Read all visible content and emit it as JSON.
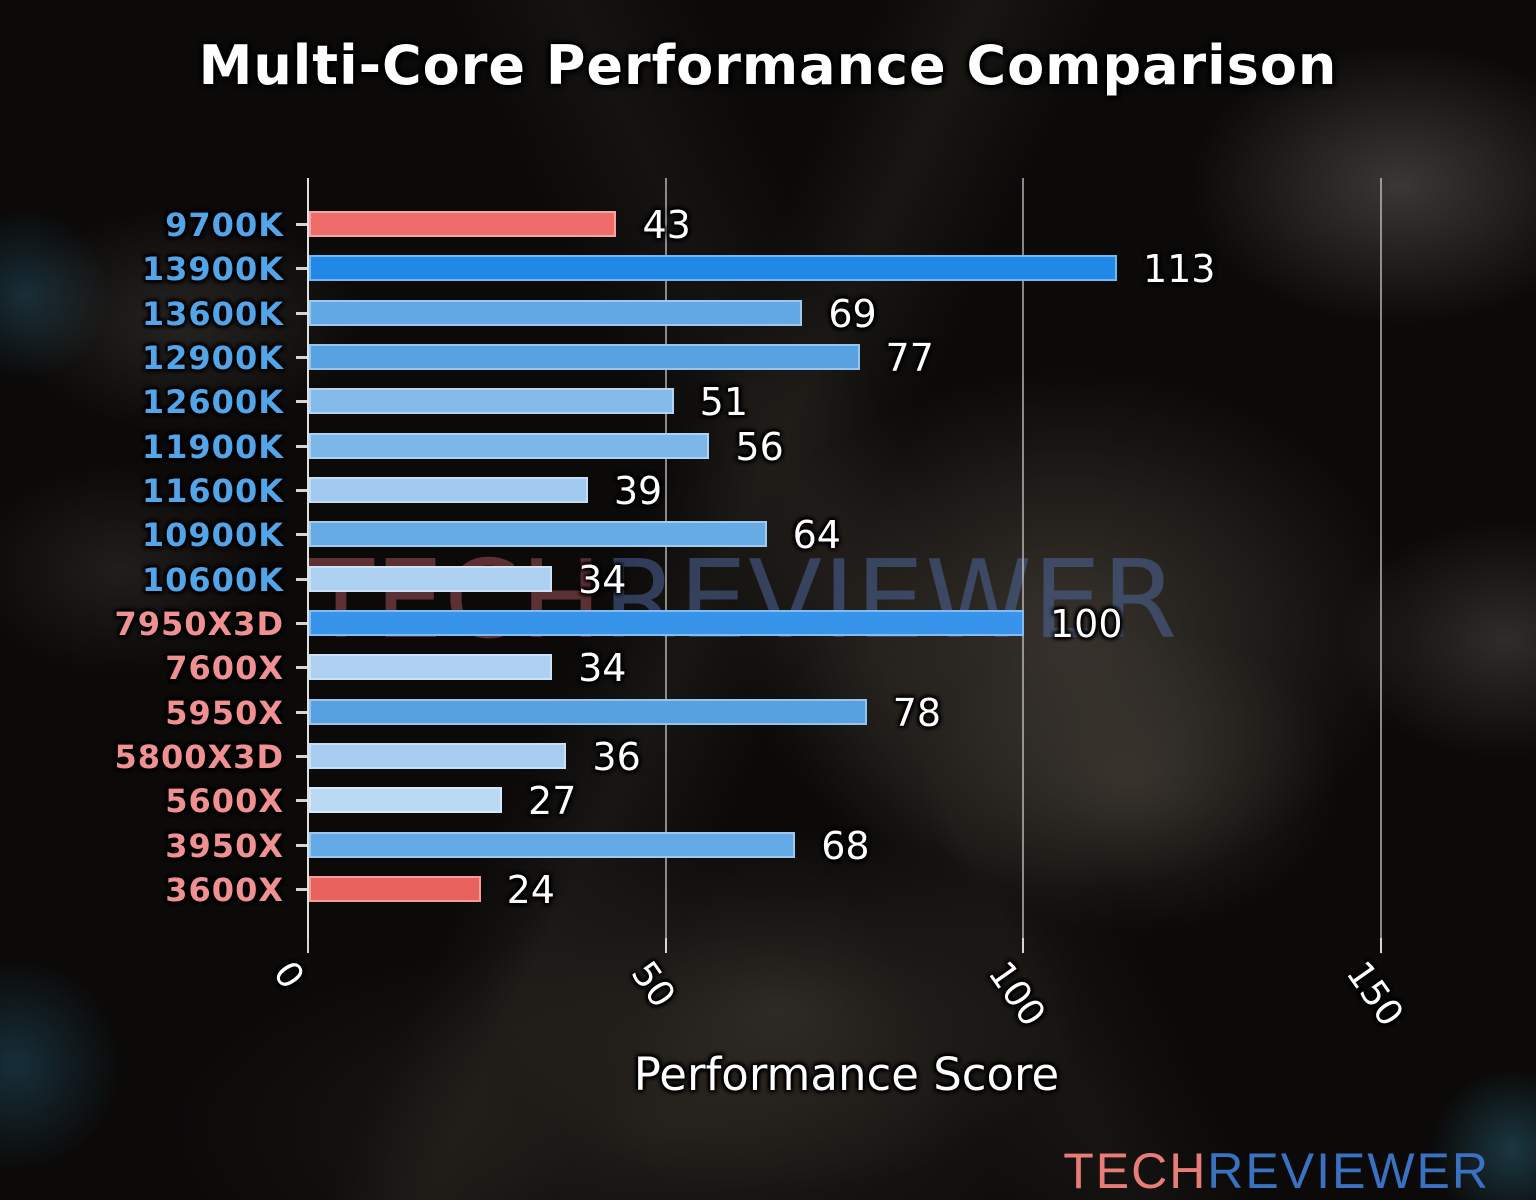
{
  "title": "Multi-Core Performance Comparison",
  "watermark": {
    "part1": "TECH",
    "part2": "REVIEWER",
    "color1": "rgba(168,86,92,0.52)",
    "color2": "rgba(82,108,165,0.50)"
  },
  "logo": {
    "part1": "TECH",
    "part2": "REVIEWER",
    "color1": "#e87d78",
    "color2": "#3a72c3"
  },
  "colors": {
    "intel_label": "#52a5e8",
    "amd_label": "#f09091",
    "highlight_red": "#ee6d6b",
    "strong_blue": "#2089e7",
    "axis_text": "#ffffff"
  },
  "chart_data": {
    "type": "bar",
    "orientation": "horizontal",
    "title": "Multi-Core Performance Comparison",
    "xlabel": "Performance Score",
    "ylabel": "",
    "xlim": [
      0,
      160
    ],
    "xticks": [
      "0",
      "50",
      "100",
      "150"
    ],
    "xtick_values": [
      0,
      50,
      100,
      150
    ],
    "grid": "vertical gridlines at xticks, no top/right/bottom spines",
    "legend": "none",
    "categories": [
      "9700K",
      "13900K",
      "13600K",
      "12900K",
      "12600K",
      "11900K",
      "11600K",
      "10900K",
      "10600K",
      "7950X3D",
      "7600X",
      "5950X",
      "5800X3D",
      "5600X",
      "3950X",
      "3600X"
    ],
    "values": [
      43,
      113,
      69,
      77,
      51,
      56,
      39,
      64,
      34,
      100,
      34,
      78,
      36,
      27,
      68,
      24
    ],
    "bars": [
      {
        "label": "9700K",
        "value": 43,
        "bar_color": "#ee6d6b",
        "label_color": "#52a5e8"
      },
      {
        "label": "13900K",
        "value": 113,
        "bar_color": "#2089e7",
        "label_color": "#52a5e8"
      },
      {
        "label": "13600K",
        "value": 69,
        "bar_color": "#61a8e5",
        "label_color": "#52a5e8"
      },
      {
        "label": "12900K",
        "value": 77,
        "bar_color": "#58a2e2",
        "label_color": "#52a5e8"
      },
      {
        "label": "12600K",
        "value": 51,
        "bar_color": "#85bbea",
        "label_color": "#52a5e8"
      },
      {
        "label": "11900K",
        "value": 56,
        "bar_color": "#7cb6e8",
        "label_color": "#52a5e8"
      },
      {
        "label": "11600K",
        "value": 39,
        "bar_color": "#a2caf0",
        "label_color": "#52a5e8"
      },
      {
        "label": "10900K",
        "value": 64,
        "bar_color": "#67abe4",
        "label_color": "#52a5e8"
      },
      {
        "label": "10600K",
        "value": 34,
        "bar_color": "#aed1f2",
        "label_color": "#52a5e8"
      },
      {
        "label": "7950X3D",
        "value": 100,
        "bar_color": "#3794ea",
        "label_color": "#f09091"
      },
      {
        "label": "7600X",
        "value": 34,
        "bar_color": "#aed1f2",
        "label_color": "#f09091"
      },
      {
        "label": "5950X",
        "value": 78,
        "bar_color": "#57a1e1",
        "label_color": "#f09091"
      },
      {
        "label": "5800X3D",
        "value": 36,
        "bar_color": "#a8cdf1",
        "label_color": "#f09091"
      },
      {
        "label": "5600X",
        "value": 27,
        "bar_color": "#bcd9f4",
        "label_color": "#f09091"
      },
      {
        "label": "3950X",
        "value": 68,
        "bar_color": "#62a9e5",
        "label_color": "#f09091"
      },
      {
        "label": "3600X",
        "value": 24,
        "bar_color": "#e9615c",
        "label_color": "#f09091"
      }
    ]
  }
}
